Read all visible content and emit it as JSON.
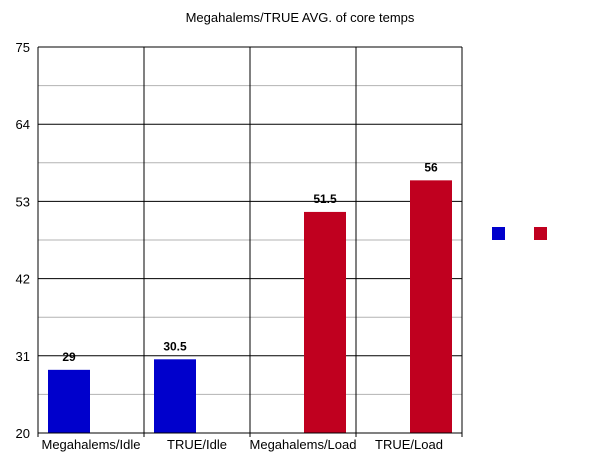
{
  "chart_data": {
    "type": "bar",
    "title": "Megahalems/TRUE AVG. of core temps",
    "xlabel": "",
    "ylabel": "",
    "categories": [
      "Megahalems/Idle",
      "TRUE/Idle",
      "Megahalems/Load",
      "TRUE/Load"
    ],
    "values": [
      29,
      30.5,
      51.5,
      56
    ],
    "data_labels": [
      "29",
      "30.5",
      "51.5",
      "56"
    ],
    "bar_offsets": [
      -1,
      -1,
      1,
      1
    ],
    "colors": [
      "#0000cc",
      "#0000cc",
      "#c0001f",
      "#c0001f"
    ],
    "legend_colors": [
      "#0000cc",
      "#c0001f"
    ],
    "ylim": [
      20,
      75
    ],
    "yticks": [
      20,
      31,
      42,
      53,
      64,
      75
    ],
    "ytick_labels": [
      "20",
      "31",
      "42",
      "53",
      "64",
      "75"
    ],
    "minor_gridlines": [
      25.5,
      36.5,
      47.5,
      58.5,
      69.5
    ],
    "grid": true,
    "legend_position": "right"
  }
}
